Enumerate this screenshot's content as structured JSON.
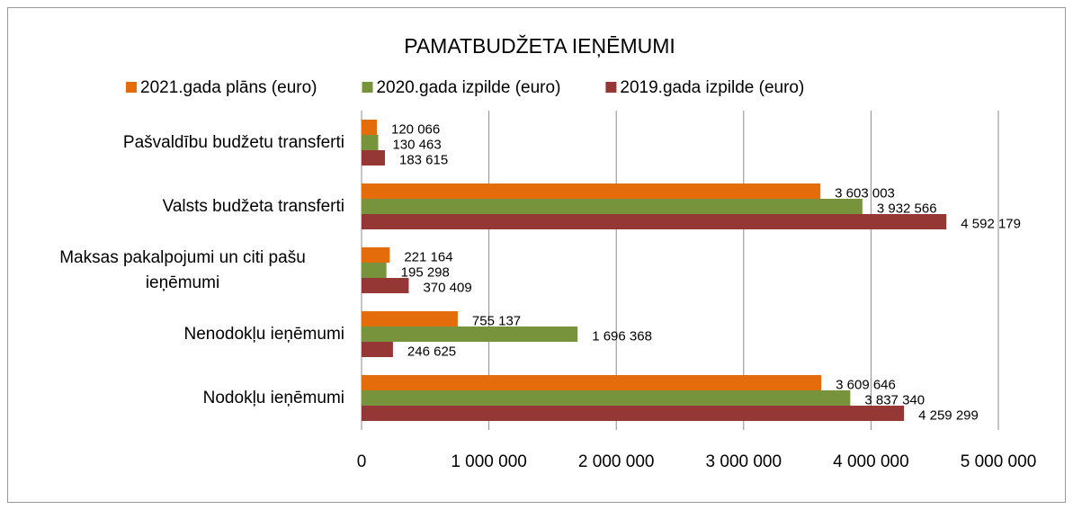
{
  "chart_data": {
    "type": "hbar",
    "title": "PAMATBUDŽETA IEŅĒMUMI",
    "categories": [
      "Pašvaldību budžetu transferti",
      "Valsts budžeta transferti",
      "Maksas pakalpojumi un citi pašu ieņēmumi",
      "Nenodokļu ieņēmumi",
      "Nodokļu ieņēmumi"
    ],
    "series": [
      {
        "name": "2021.gada plāns (euro)",
        "color": "#e46c0a",
        "values": [
          120066,
          3603003,
          221164,
          755137,
          3609646
        ],
        "value_labels": [
          "120 066",
          "3 603 003",
          "221 164",
          "755 137",
          "3 609 646"
        ]
      },
      {
        "name": "2020.gada izpilde (euro)",
        "color": "#77933c",
        "values": [
          130463,
          3932566,
          195298,
          1696368,
          3837340
        ],
        "value_labels": [
          "130 463",
          "3 932 566",
          "195 298",
          "1 696 368",
          "3 837 340"
        ]
      },
      {
        "name": "2019.gada izpilde (euro)",
        "color": "#953735",
        "values": [
          183615,
          4592179,
          370409,
          246625,
          4259299
        ],
        "value_labels": [
          "183 615",
          "4 592 179",
          "370 409",
          "246 625",
          "4 259 299"
        ]
      }
    ],
    "xlim": [
      0,
      5000000
    ],
    "xticks": [
      0,
      {
        "value": 1000000,
        "label": "1 000 000"
      },
      {
        "value": 2000000,
        "label": "2 000 000"
      },
      {
        "value": 3000000,
        "label": "3 000 000"
      },
      {
        "value": 4000000,
        "label": "4 000 000"
      },
      {
        "value": 5000000,
        "label": "5 000 000"
      }
    ],
    "grid": true,
    "legend": "top"
  }
}
